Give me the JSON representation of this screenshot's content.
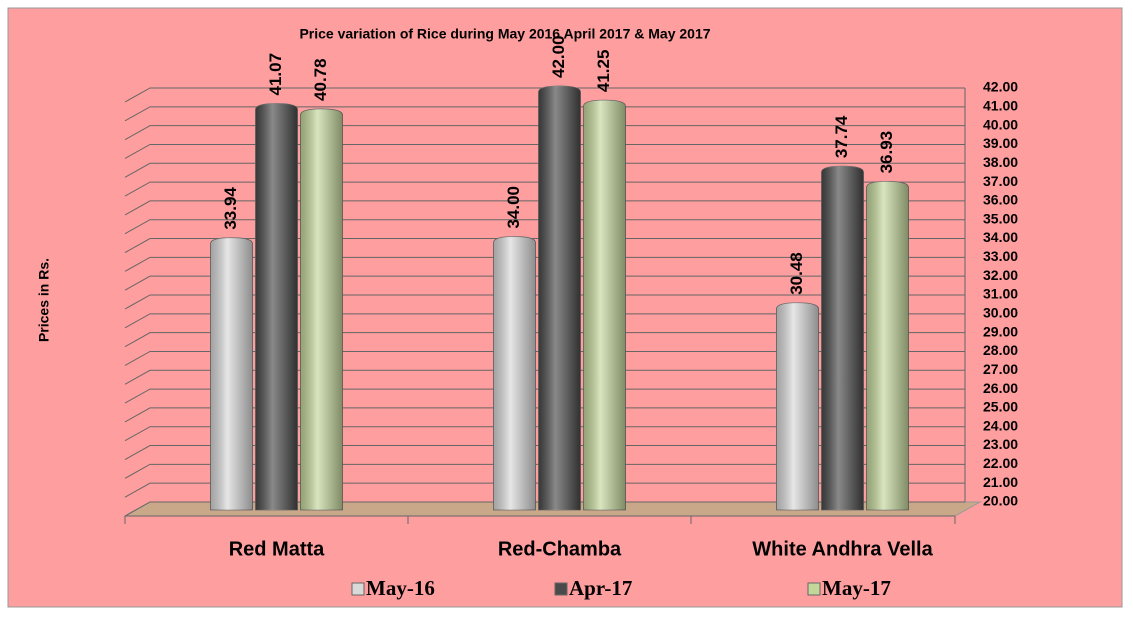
{
  "chart_data": {
    "type": "bar",
    "title": "Price variation of Rice during  May  2016  April  2017 &  May 2017",
    "y_label": "Prices in Rs.",
    "categories": [
      "Red Matta",
      "Red-Chamba",
      "White Andhra Vella"
    ],
    "series": [
      {
        "name": "May-16",
        "color": "#d9d9d9",
        "values": [
          33.94,
          34.0,
          30.48
        ],
        "value_labels": [
          "33.94",
          "34.00",
          "30.48"
        ]
      },
      {
        "name": "Apr-17",
        "color": "#4a4a4a",
        "values": [
          41.07,
          42.0,
          37.74
        ],
        "value_labels": [
          "41.07",
          "42.00",
          "37.74"
        ]
      },
      {
        "name": "May-17",
        "color": "#c4d79b",
        "values": [
          40.78,
          41.25,
          36.93
        ],
        "value_labels": [
          "40.78",
          "41.25",
          "36.93"
        ]
      }
    ],
    "ylim": [
      20,
      42
    ],
    "yticks": [
      {
        "value": 20,
        "label": "20.00"
      },
      {
        "value": 21,
        "label": "21.00"
      },
      {
        "value": 22,
        "label": "22.00"
      },
      {
        "value": 23,
        "label": "23.00"
      },
      {
        "value": 24,
        "label": "24.00"
      },
      {
        "value": 25,
        "label": "25.00"
      },
      {
        "value": 26,
        "label": "26.00"
      },
      {
        "value": 27,
        "label": "27.00"
      },
      {
        "value": 28,
        "label": "28.00"
      },
      {
        "value": 29,
        "label": "29.00"
      },
      {
        "value": 30,
        "label": "30.00"
      },
      {
        "value": 31,
        "label": "31.00"
      },
      {
        "value": 32,
        "label": "32.00"
      },
      {
        "value": 33,
        "label": "33.00"
      },
      {
        "value": 34,
        "label": "34.00"
      },
      {
        "value": 35,
        "label": "35.00"
      },
      {
        "value": 36,
        "label": "36.00"
      },
      {
        "value": 37,
        "label": "37.00"
      },
      {
        "value": 38,
        "label": "38.00"
      },
      {
        "value": 39,
        "label": "39.00"
      },
      {
        "value": 40,
        "label": "40.00"
      },
      {
        "value": 41,
        "label": "41.00"
      },
      {
        "value": 42,
        "label": "42.00"
      }
    ],
    "grid": true
  }
}
